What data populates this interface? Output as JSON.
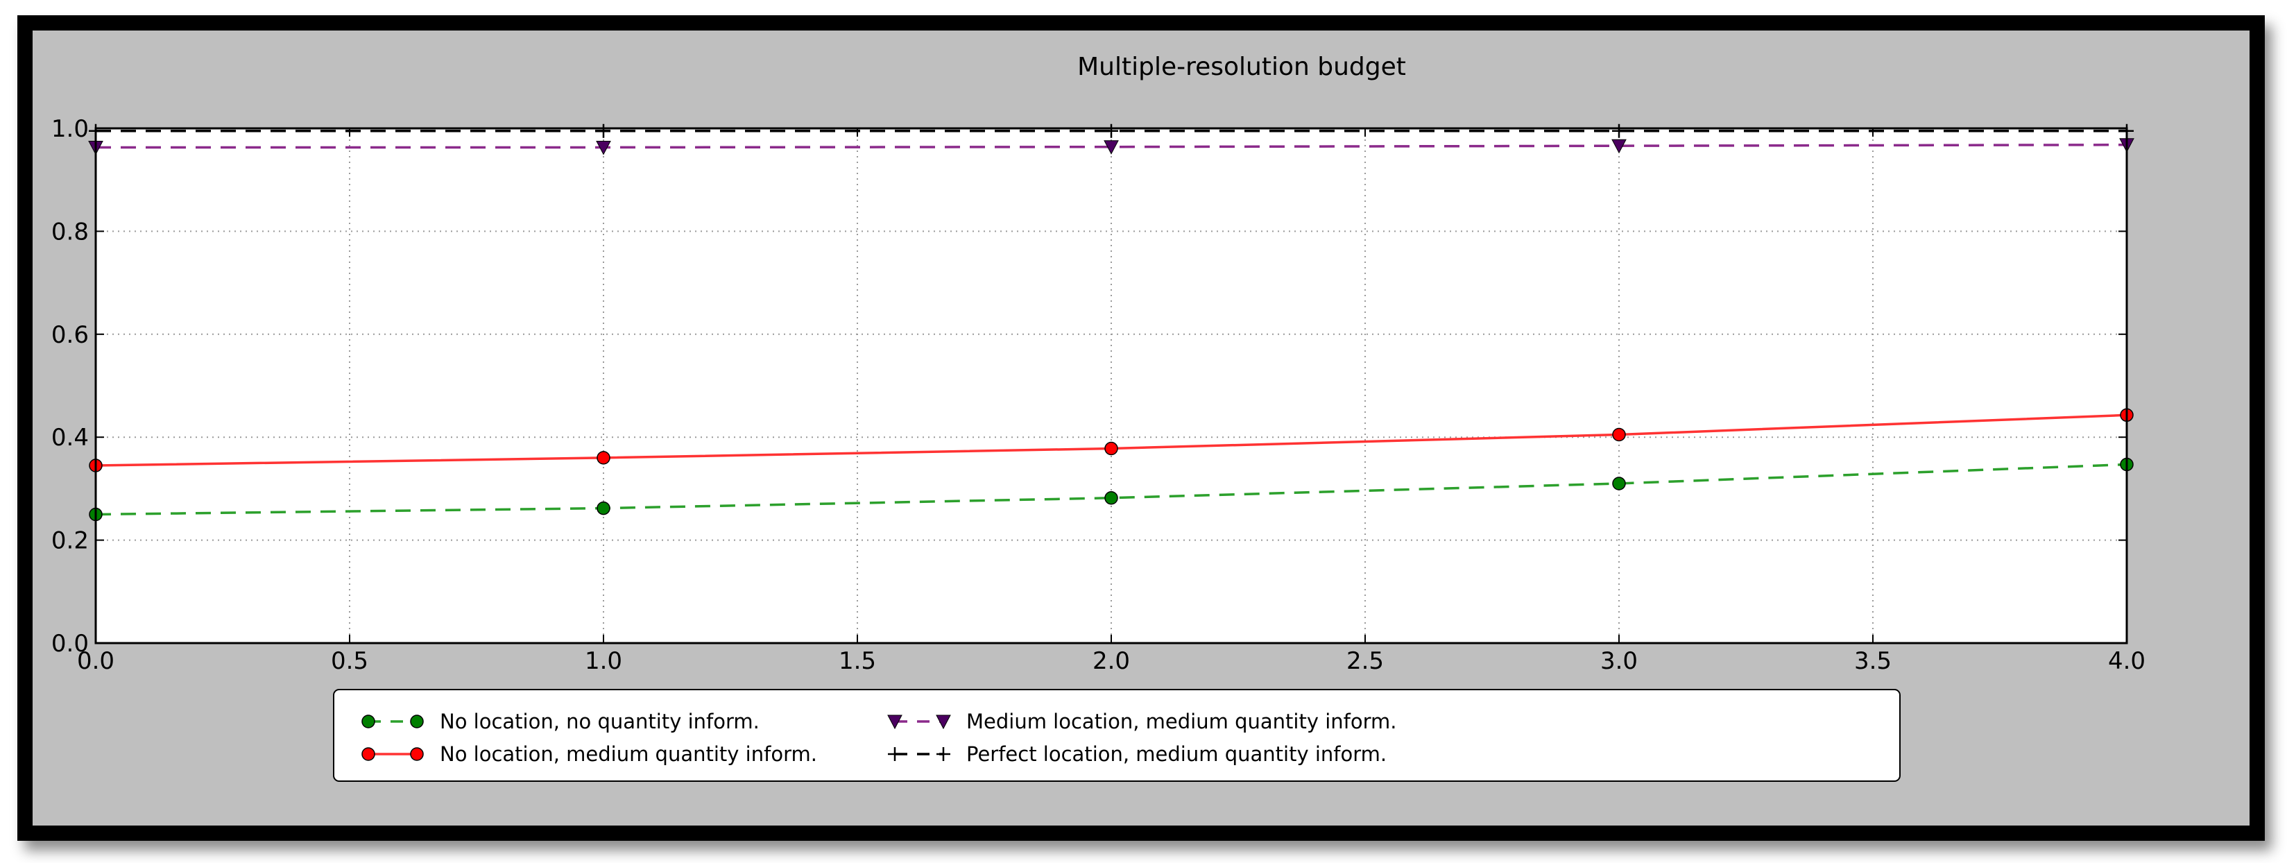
{
  "chart_data": {
    "type": "line",
    "title": "Multiple-resolution budget",
    "xlabel": "",
    "ylabel": "",
    "xlim": [
      0.0,
      4.0
    ],
    "ylim": [
      0.0,
      1.0
    ],
    "x_ticks": [
      "0.0",
      "0.5",
      "1.0",
      "1.5",
      "2.0",
      "2.5",
      "3.0",
      "3.5",
      "4.0"
    ],
    "y_ticks": [
      "0.0",
      "0.2",
      "0.4",
      "0.6",
      "0.8",
      "1.0"
    ],
    "grid": true,
    "legend_position": "bottom-center",
    "x": [
      0,
      1,
      2,
      3,
      4
    ],
    "series": [
      {
        "name": "No location, no quantity inform.",
        "values": [
          0.25,
          0.262,
          0.282,
          0.31,
          0.347
        ],
        "color": "#2ca02c",
        "marker_color": "#007f00",
        "linestyle": "dashed",
        "marker": "circle"
      },
      {
        "name": "No location, medium quantity inform.",
        "values": [
          0.345,
          0.36,
          0.378,
          0.405,
          0.443
        ],
        "color": "#ff3333",
        "marker_color": "#ff0000",
        "linestyle": "solid",
        "marker": "circle"
      },
      {
        "name": "Medium location, medium quantity inform.",
        "values": [
          0.963,
          0.963,
          0.964,
          0.966,
          0.968
        ],
        "color": "#8b2a8b",
        "marker_color": "#4b0060",
        "linestyle": "dashed",
        "marker": "triangle-down"
      },
      {
        "name": "Perfect location, medium quantity inform.",
        "values": [
          0.995,
          0.995,
          0.995,
          0.995,
          0.995
        ],
        "color": "#000000",
        "marker_color": "#000000",
        "linestyle": "dashed",
        "marker": "plus"
      }
    ]
  }
}
